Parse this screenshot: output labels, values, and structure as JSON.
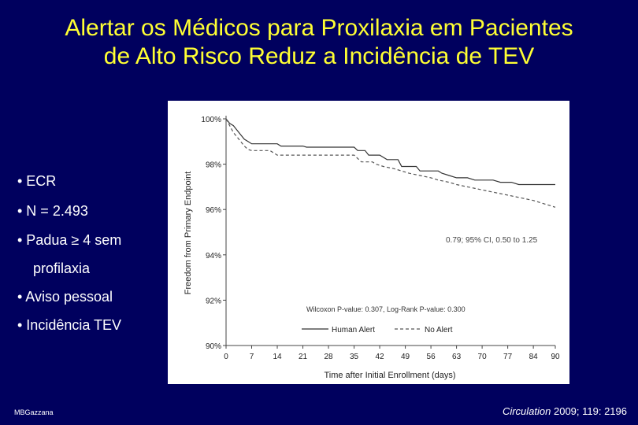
{
  "slide": {
    "title_line1": "Alertar os Médicos para Proxilaxia em Pacientes",
    "title_line2": "de Alto Risco Reduz a Incidência de TEV",
    "bullets": [
      "• ECR",
      "• N = 2.493",
      "• Padua ≥ 4 sem",
      "profilaxia",
      "• Aviso pessoal",
      "• Incidência TEV"
    ],
    "author": "MBGazzana",
    "citation_journal": "Circulation",
    "citation_rest": " 2009; 119: 2196"
  },
  "chart_data": {
    "type": "line",
    "xlabel": "Time after Initial Enrollment (days)",
    "ylabel": "Freedom from Primary Endpoint",
    "xlim": [
      0,
      90
    ],
    "ylim": [
      90,
      100
    ],
    "x_ticks": [
      0,
      7,
      14,
      21,
      28,
      35,
      42,
      49,
      56,
      63,
      70,
      77,
      84,
      90
    ],
    "y_ticks": [
      90,
      92,
      94,
      96,
      98,
      100
    ],
    "y_tick_labels": [
      "90%",
      "92%",
      "94%",
      "96%",
      "98%",
      "100%"
    ],
    "grid": false,
    "legend_position": "bottom-right",
    "annotations": {
      "hazard_ratio": "0.79; 95% CI, 0.50 to 1.25",
      "pvalues": "Wilcoxon P-value: 0.307, Log-Rank P-value: 0.300"
    },
    "series": [
      {
        "name": "Human Alert",
        "style": "solid",
        "color": "#333333",
        "points": [
          [
            0,
            100
          ],
          [
            1,
            99.8
          ],
          [
            2,
            99.7
          ],
          [
            3,
            99.5
          ],
          [
            4,
            99.3
          ],
          [
            5,
            99.1
          ],
          [
            6,
            99.0
          ],
          [
            7,
            98.9
          ],
          [
            14,
            98.9
          ],
          [
            15,
            98.8
          ],
          [
            21,
            98.8
          ],
          [
            22,
            98.75
          ],
          [
            35,
            98.75
          ],
          [
            36,
            98.6
          ],
          [
            38,
            98.6
          ],
          [
            39,
            98.4
          ],
          [
            42,
            98.4
          ],
          [
            44,
            98.2
          ],
          [
            47,
            98.2
          ],
          [
            48,
            97.9
          ],
          [
            52,
            97.9
          ],
          [
            53,
            97.7
          ],
          [
            58,
            97.7
          ],
          [
            59,
            97.6
          ],
          [
            61,
            97.5
          ],
          [
            63,
            97.4
          ],
          [
            66,
            97.4
          ],
          [
            68,
            97.3
          ],
          [
            73,
            97.3
          ],
          [
            75,
            97.2
          ],
          [
            78,
            97.2
          ],
          [
            80,
            97.1
          ],
          [
            90,
            97.1
          ]
        ]
      },
      {
        "name": "No Alert",
        "style": "dashed",
        "color": "#555555",
        "points": [
          [
            0,
            100
          ],
          [
            1,
            99.7
          ],
          [
            2,
            99.4
          ],
          [
            3,
            99.2
          ],
          [
            4,
            99.0
          ],
          [
            5,
            98.8
          ],
          [
            6,
            98.65
          ],
          [
            7,
            98.6
          ],
          [
            12,
            98.6
          ],
          [
            13,
            98.5
          ],
          [
            14,
            98.4
          ],
          [
            35,
            98.4
          ],
          [
            36,
            98.25
          ],
          [
            37,
            98.1
          ],
          [
            40,
            98.1
          ],
          [
            41,
            98.0
          ],
          [
            43,
            97.9
          ],
          [
            46,
            97.8
          ],
          [
            48,
            97.7
          ],
          [
            50,
            97.6
          ],
          [
            53,
            97.5
          ],
          [
            56,
            97.4
          ],
          [
            58,
            97.3
          ],
          [
            61,
            97.2
          ],
          [
            63,
            97.1
          ],
          [
            66,
            97.0
          ],
          [
            69,
            96.9
          ],
          [
            72,
            96.8
          ],
          [
            75,
            96.7
          ],
          [
            78,
            96.6
          ],
          [
            81,
            96.5
          ],
          [
            84,
            96.4
          ],
          [
            86,
            96.3
          ],
          [
            88,
            96.2
          ],
          [
            90,
            96.1
          ]
        ]
      }
    ]
  }
}
